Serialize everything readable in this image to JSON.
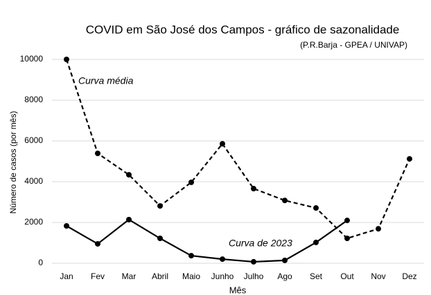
{
  "chart_data": {
    "type": "line",
    "title": "COVID em São José dos Campos - gráfico de sazonalidade",
    "subtitle": "(P.R.Barja - GPEA / UNIVAP)",
    "y_label": "Número de casos (por mês)",
    "x_label": "Mês",
    "categories": [
      "Jan",
      "Fev",
      "Mar",
      "Abril",
      "Maio",
      "Junho",
      "Julho",
      "Ago",
      "Set",
      "Out",
      "Nov",
      "Dez"
    ],
    "series": [
      {
        "name": "Curva média",
        "color": "#000000",
        "style": "dashed",
        "values": [
          10000,
          5390,
          4340,
          2810,
          3970,
          5860,
          3660,
          3080,
          2710,
          1220,
          1690,
          5120
        ]
      },
      {
        "name": "Curva de 2023",
        "color": "#000000",
        "style": "solid",
        "values": [
          1830,
          950,
          2140,
          1220,
          370,
          200,
          70,
          140,
          1020,
          2100,
          null,
          null
        ]
      }
    ],
    "ylim": [
      0,
      10000
    ],
    "yticks": [
      0,
      2000,
      4000,
      6000,
      8000,
      10000
    ],
    "grid": true
  }
}
